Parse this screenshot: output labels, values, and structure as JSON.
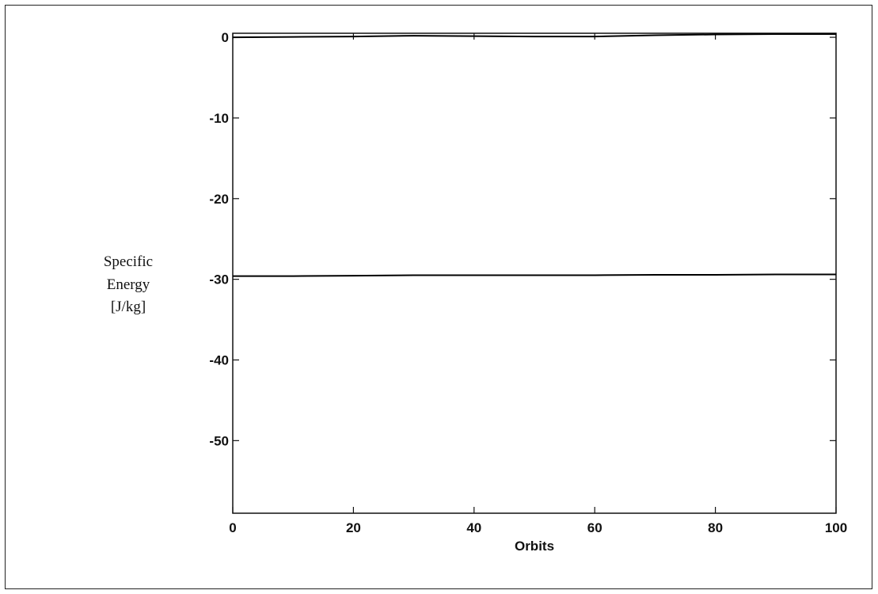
{
  "chart_data": {
    "type": "line",
    "title": "",
    "xlabel": "Orbits",
    "ylabel_lines": [
      "Specific",
      "Energy",
      "[J/kg]"
    ],
    "xlim": [
      0,
      100
    ],
    "ylim": [
      -59,
      0.5
    ],
    "xticks": [
      0,
      20,
      40,
      60,
      80,
      100
    ],
    "yticks": [
      0,
      -10,
      -20,
      -30,
      -40,
      -50
    ],
    "grid": false,
    "series": [
      {
        "x": [
          0,
          10,
          20,
          30,
          40,
          50,
          60,
          70,
          80,
          90,
          100
        ],
        "y": [
          0.0,
          0.05,
          0.1,
          0.2,
          0.15,
          0.1,
          0.1,
          0.25,
          0.35,
          0.4,
          0.4
        ],
        "color": "#000000"
      },
      {
        "x": [
          0,
          10,
          20,
          30,
          40,
          50,
          60,
          70,
          80,
          90,
          100
        ],
        "y": [
          -29.6,
          -29.6,
          -29.55,
          -29.5,
          -29.5,
          -29.5,
          -29.5,
          -29.45,
          -29.45,
          -29.4,
          -29.4
        ],
        "color": "#000000"
      }
    ]
  }
}
